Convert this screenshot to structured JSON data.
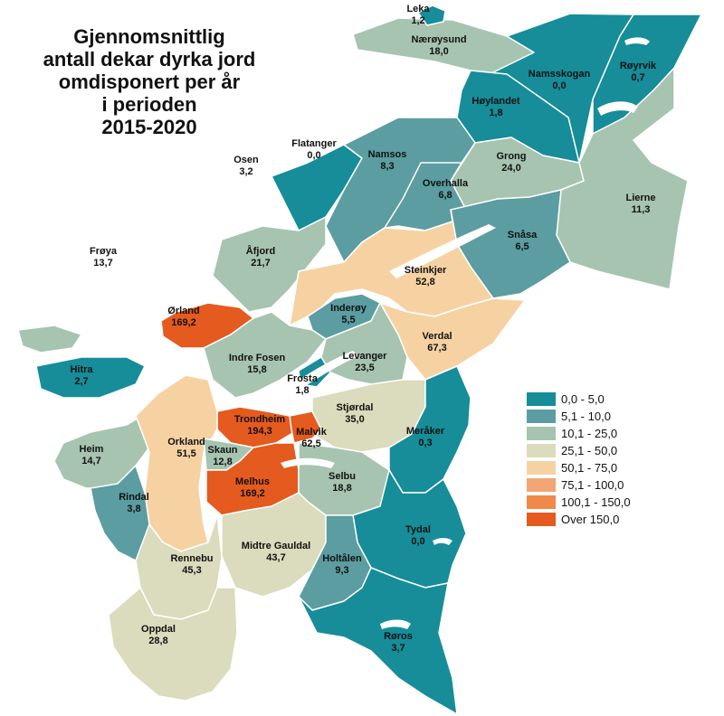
{
  "title": {
    "line1": "Gjennomsnittlig",
    "line2": "antall dekar dyrka jord",
    "line3": "omdisponert per år",
    "line4": "i perioden",
    "line5": "2015-2020"
  },
  "colors": {
    "c1": "#168d99",
    "c2": "#5b9da1",
    "c3": "#a6c4b0",
    "c4": "#dbdbbd",
    "c5": "#f6d2a3",
    "c6": "#f3a574",
    "c7": "#ef8a4a",
    "c8": "#e55a1e",
    "coast": "#b3ccd0"
  },
  "legend": [
    {
      "label": "0,0 - 5,0",
      "color": "#168d99"
    },
    {
      "label": "5,1 - 10,0",
      "color": "#5b9da1"
    },
    {
      "label": "10,1 - 25,0",
      "color": "#a6c4b0"
    },
    {
      "label": "25,1 - 50,0",
      "color": "#dbdbbd"
    },
    {
      "label": "50,1 - 75,0",
      "color": "#f6d2a3"
    },
    {
      "label": "75,1 - 100,0",
      "color": "#f3a574"
    },
    {
      "label": "100,1 - 150,0",
      "color": "#ef8a4a"
    },
    {
      "label": "Over 150,0",
      "color": "#e55a1e"
    }
  ],
  "municipalities": [
    {
      "name": "Leka",
      "value": "1,2"
    },
    {
      "name": "Nærøysund",
      "value": "18,0"
    },
    {
      "name": "Namsskogan",
      "value": "0,0"
    },
    {
      "name": "Røyrvik",
      "value": "0,7"
    },
    {
      "name": "Høylandet",
      "value": "1,8"
    },
    {
      "name": "Flatanger",
      "value": "0,0"
    },
    {
      "name": "Osen",
      "value": "3,2"
    },
    {
      "name": "Namsos",
      "value": "8,3"
    },
    {
      "name": "Grong",
      "value": "24,0"
    },
    {
      "name": "Overhalla",
      "value": "6,8"
    },
    {
      "name": "Lierne",
      "value": "11,3"
    },
    {
      "name": "Snåsa",
      "value": "6,5"
    },
    {
      "name": "Frøya",
      "value": "13,7"
    },
    {
      "name": "Åfjord",
      "value": "21,7"
    },
    {
      "name": "Steinkjer",
      "value": "52,8"
    },
    {
      "name": "Ørland",
      "value": "169,2"
    },
    {
      "name": "Inderøy",
      "value": "5,5"
    },
    {
      "name": "Verdal",
      "value": "67,3"
    },
    {
      "name": "Indre Fosen",
      "value": "15,8"
    },
    {
      "name": "Levanger",
      "value": "23,5"
    },
    {
      "name": "Hitra",
      "value": "2,7"
    },
    {
      "name": "Frosta",
      "value": "1,8"
    },
    {
      "name": "Stjørdal",
      "value": "35,0"
    },
    {
      "name": "Trondheim",
      "value": "194,3"
    },
    {
      "name": "Malvik",
      "value": "62,5"
    },
    {
      "name": "Meråker",
      "value": "0,3"
    },
    {
      "name": "Heim",
      "value": "14,7"
    },
    {
      "name": "Orkland",
      "value": "51,5"
    },
    {
      "name": "Skaun",
      "value": "12,8"
    },
    {
      "name": "Melhus",
      "value": "169,2"
    },
    {
      "name": "Selbu",
      "value": "18,8"
    },
    {
      "name": "Rindal",
      "value": "3,8"
    },
    {
      "name": "Tydal",
      "value": "0,0"
    },
    {
      "name": "Rennebu",
      "value": "45,3"
    },
    {
      "name": "Midtre Gauldal",
      "value": "43,7"
    },
    {
      "name": "Holtålen",
      "value": "9,3"
    },
    {
      "name": "Oppdal",
      "value": "28,8"
    },
    {
      "name": "Røros",
      "value": "3,7"
    }
  ]
}
